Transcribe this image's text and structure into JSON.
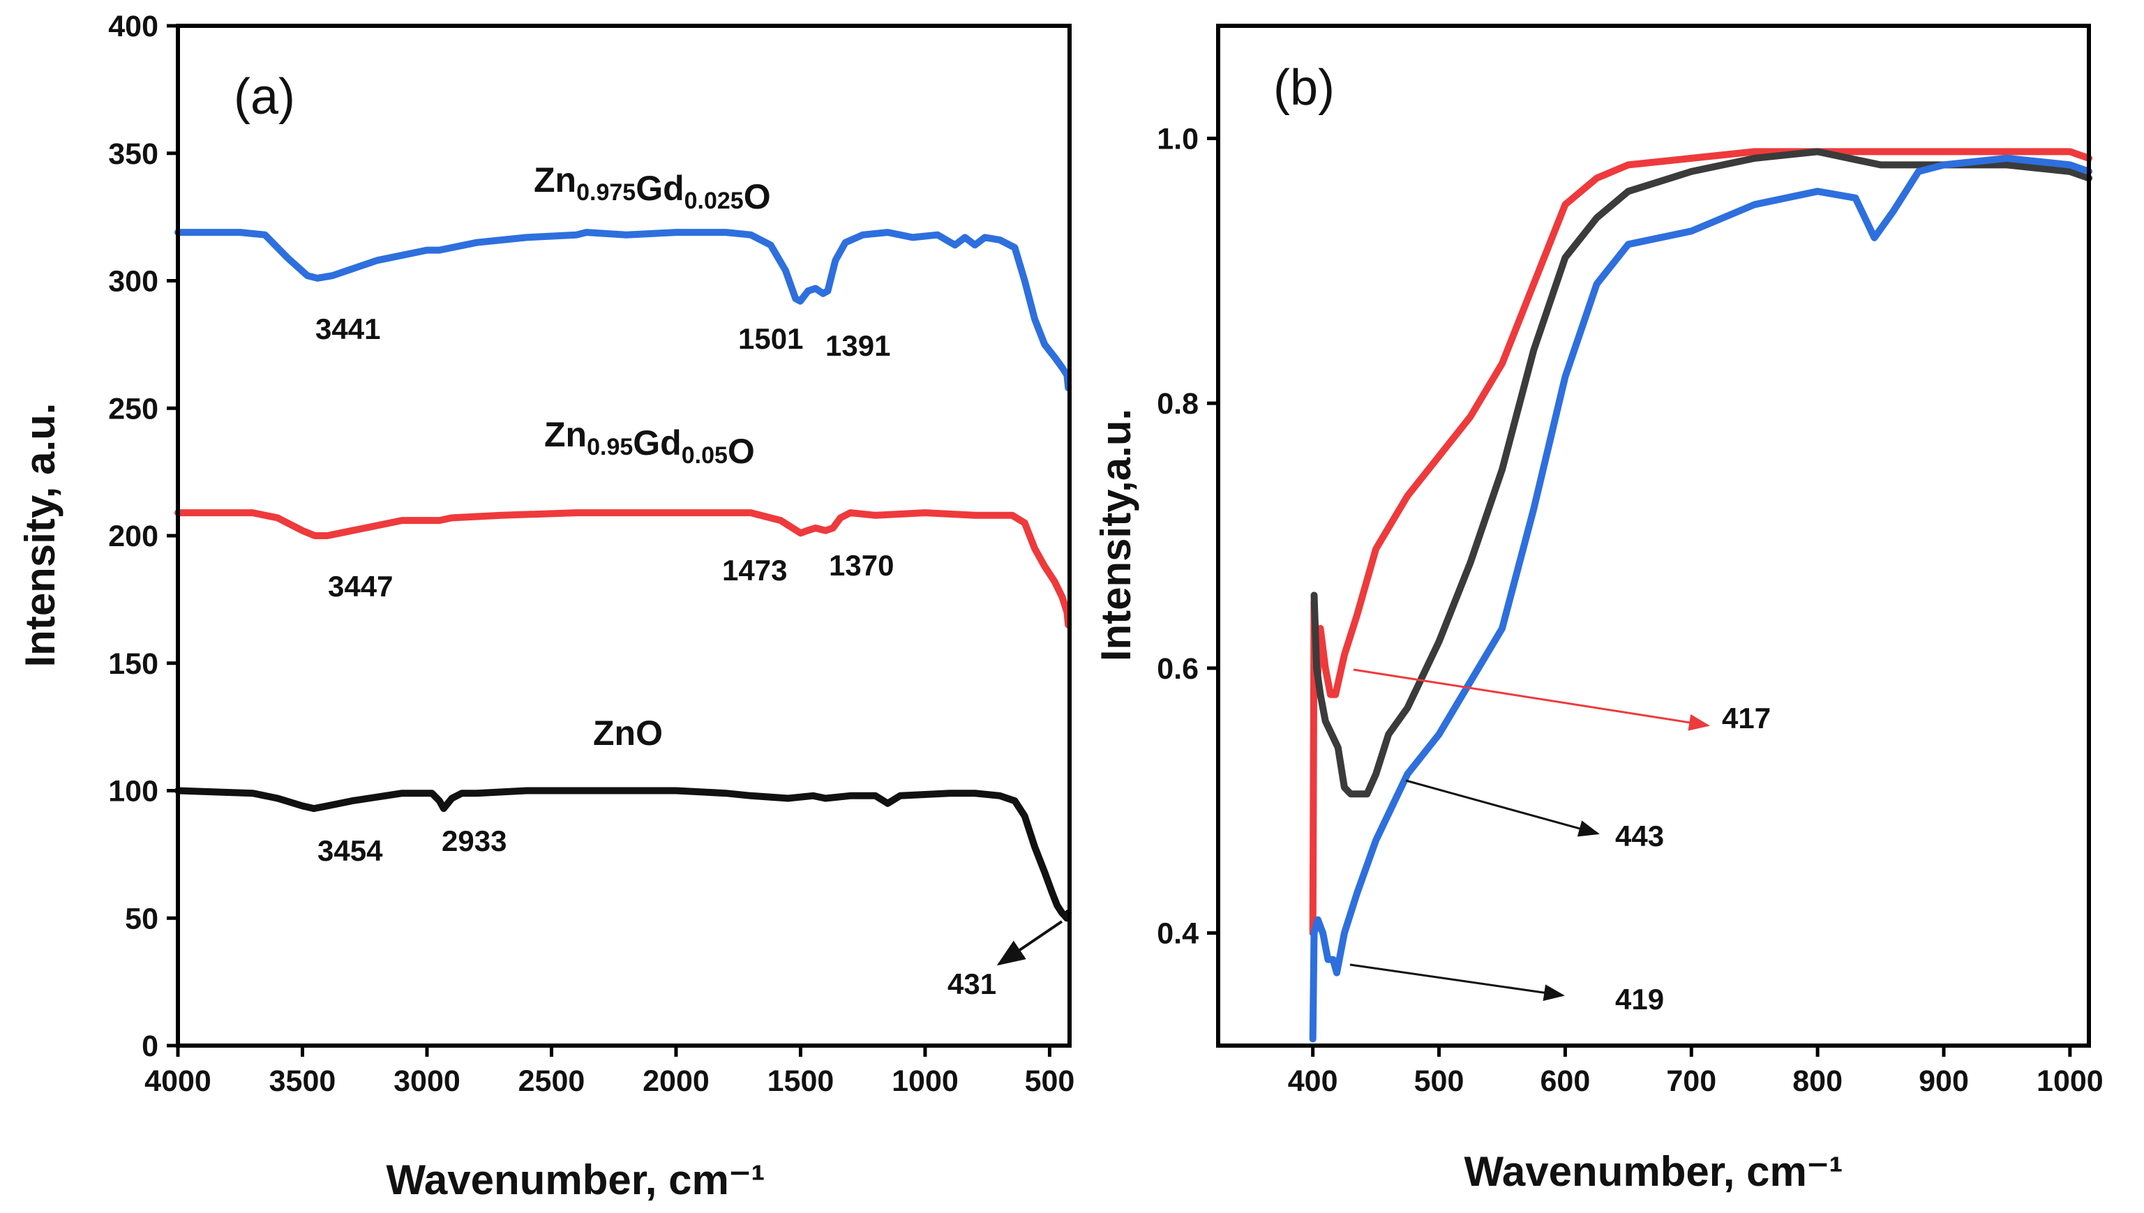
{
  "chart_data": [
    {
      "panel": "(a)",
      "type": "line",
      "xlabel": "Wavenumber, cm⁻¹",
      "ylabel": "Intensity, a.u.",
      "xlim": [
        4000,
        420
      ],
      "ylim": [
        0,
        400
      ],
      "xticks": [
        4000,
        3500,
        3000,
        2500,
        2000,
        1500,
        1000,
        500
      ],
      "yticks": [
        0,
        50,
        100,
        150,
        200,
        250,
        300,
        350,
        400
      ],
      "series": [
        {
          "name": "Zn0.975Gd0.025O",
          "label_parts": [
            [
              "Zn",
              "0.975"
            ],
            [
              "Gd",
              "0.025"
            ],
            [
              "O",
              ""
            ]
          ],
          "color": "#2e6fde",
          "x": [
            4000,
            3750,
            3650,
            3560,
            3480,
            3440,
            3380,
            3200,
            3000,
            2950,
            2800,
            2600,
            2400,
            2360,
            2200,
            2000,
            1800,
            1700,
            1620,
            1560,
            1520,
            1501,
            1470,
            1440,
            1410,
            1391,
            1360,
            1320,
            1250,
            1150,
            1050,
            950,
            880,
            840,
            800,
            760,
            700,
            640,
            600,
            560,
            520,
            480,
            450,
            430,
            425
          ],
          "y": [
            319,
            319,
            318,
            309,
            302,
            301,
            302,
            308,
            312,
            312,
            315,
            317,
            318,
            319,
            318,
            319,
            319,
            318,
            314,
            304,
            293,
            292,
            296,
            297,
            295,
            296,
            308,
            315,
            318,
            319,
            317,
            318,
            314,
            317,
            314,
            317,
            316,
            313,
            300,
            285,
            275,
            270,
            266,
            263,
            258
          ],
          "annotations": [
            {
              "text": "3441",
              "x": 3441,
              "y": 301
            },
            {
              "text": "1501",
              "x": 1501,
              "y": 292
            },
            {
              "text": "1391",
              "x": 1391,
              "y": 296
            }
          ]
        },
        {
          "name": "Zn0.95Gd0.05O",
          "label_parts": [
            [
              "Zn",
              "0.95"
            ],
            [
              "Gd",
              "0.05"
            ],
            [
              "O",
              ""
            ]
          ],
          "color": "#ee3a3c",
          "x": [
            4000,
            3700,
            3600,
            3500,
            3450,
            3400,
            3300,
            3100,
            2950,
            2900,
            2700,
            2400,
            2000,
            1700,
            1580,
            1500,
            1473,
            1440,
            1400,
            1370,
            1340,
            1300,
            1200,
            1000,
            800,
            650,
            600,
            560,
            520,
            480,
            450,
            430,
            425
          ],
          "y": [
            209,
            209,
            207,
            202,
            200,
            200,
            202,
            206,
            206,
            207,
            208,
            209,
            209,
            209,
            206,
            201,
            202,
            203,
            202,
            203,
            207,
            209,
            208,
            209,
            208,
            208,
            205,
            195,
            188,
            182,
            176,
            170,
            165
          ],
          "annotations": [
            {
              "text": "3447",
              "x": 3447,
              "y": 200
            },
            {
              "text": "1473",
              "x": 1473,
              "y": 202
            },
            {
              "text": "1370",
              "x": 1370,
              "y": 203
            }
          ]
        },
        {
          "name": "ZnO",
          "label_parts": [
            [
              "ZnO",
              ""
            ]
          ],
          "color": "#111111",
          "x": [
            4000,
            3700,
            3600,
            3500,
            3454,
            3400,
            3300,
            3100,
            2980,
            2950,
            2933,
            2900,
            2860,
            2800,
            2600,
            2400,
            2000,
            1800,
            1700,
            1550,
            1450,
            1400,
            1300,
            1200,
            1150,
            1100,
            900,
            800,
            700,
            640,
            600,
            560,
            520,
            490,
            470,
            450,
            440,
            431,
            425
          ],
          "y": [
            100,
            99,
            97,
            94,
            93,
            94,
            96,
            99,
            99,
            96,
            93,
            97,
            99,
            99,
            100,
            100,
            100,
            99,
            98,
            97,
            98,
            97,
            98,
            98,
            95,
            98,
            99,
            99,
            98,
            96,
            90,
            78,
            68,
            60,
            55,
            52,
            51,
            50,
            52
          ],
          "annotations": [
            {
              "text": "3454",
              "x": 3454,
              "y": 93
            },
            {
              "text": "2933",
              "x": 2933,
              "y": 93
            },
            {
              "text": "431",
              "x": 431,
              "y": 50
            }
          ]
        }
      ]
    },
    {
      "panel": "(b)",
      "type": "line",
      "xlabel": "Wavenumber, cm⁻¹",
      "ylabel": "Intensity,a.u.",
      "xlim": [
        325,
        1015
      ],
      "ylim": [
        0.315,
        1.085
      ],
      "xticks": [
        400,
        500,
        600,
        700,
        800,
        900,
        1000
      ],
      "yticks": [
        0.4,
        0.6,
        0.8,
        1.0
      ],
      "ytick_labels": [
        "0.4",
        "0.6",
        "0.8",
        "1.0"
      ],
      "series": [
        {
          "name": "red",
          "color": "#ee3a3c",
          "x": [
            400,
            401,
            403,
            406,
            410,
            414,
            418,
            425,
            435,
            450,
            475,
            500,
            525,
            550,
            575,
            600,
            625,
            650,
            700,
            750,
            800,
            850,
            900,
            950,
            1000,
            1015
          ],
          "y": [
            0.4,
            0.65,
            0.58,
            0.63,
            0.6,
            0.58,
            0.58,
            0.61,
            0.64,
            0.69,
            0.73,
            0.76,
            0.79,
            0.83,
            0.89,
            0.95,
            0.97,
            0.98,
            0.985,
            0.99,
            0.99,
            0.99,
            0.99,
            0.99,
            0.99,
            0.985
          ],
          "annotations": [
            {
              "text": "417",
              "x": 417,
              "y": 0.58
            }
          ]
        },
        {
          "name": "black",
          "color": "#3b3b3b",
          "x": [
            401,
            403,
            406,
            410,
            415,
            420,
            425,
            430,
            435,
            443,
            450,
            460,
            475,
            500,
            525,
            550,
            575,
            600,
            625,
            650,
            700,
            750,
            800,
            850,
            900,
            950,
            1000,
            1015
          ],
          "y": [
            0.655,
            0.6,
            0.58,
            0.56,
            0.55,
            0.54,
            0.51,
            0.505,
            0.505,
            0.505,
            0.52,
            0.55,
            0.57,
            0.62,
            0.68,
            0.75,
            0.84,
            0.91,
            0.94,
            0.96,
            0.975,
            0.985,
            0.99,
            0.98,
            0.98,
            0.98,
            0.975,
            0.97
          ],
          "annotations": [
            {
              "text": "443",
              "x": 443,
              "y": 0.505
            }
          ]
        },
        {
          "name": "blue",
          "color": "#2e6fde",
          "x": [
            400,
            401,
            404,
            408,
            412,
            416,
            419,
            425,
            435,
            450,
            475,
            500,
            525,
            550,
            575,
            600,
            625,
            650,
            700,
            750,
            800,
            830,
            845,
            860,
            880,
            900,
            950,
            1000,
            1015
          ],
          "y": [
            0.32,
            0.4,
            0.41,
            0.4,
            0.38,
            0.38,
            0.37,
            0.4,
            0.43,
            0.47,
            0.52,
            0.55,
            0.59,
            0.63,
            0.72,
            0.82,
            0.89,
            0.92,
            0.93,
            0.95,
            0.96,
            0.955,
            0.925,
            0.945,
            0.975,
            0.98,
            0.985,
            0.98,
            0.975
          ],
          "annotations": [
            {
              "text": "419",
              "x": 419,
              "y": 0.37
            }
          ]
        }
      ]
    }
  ]
}
